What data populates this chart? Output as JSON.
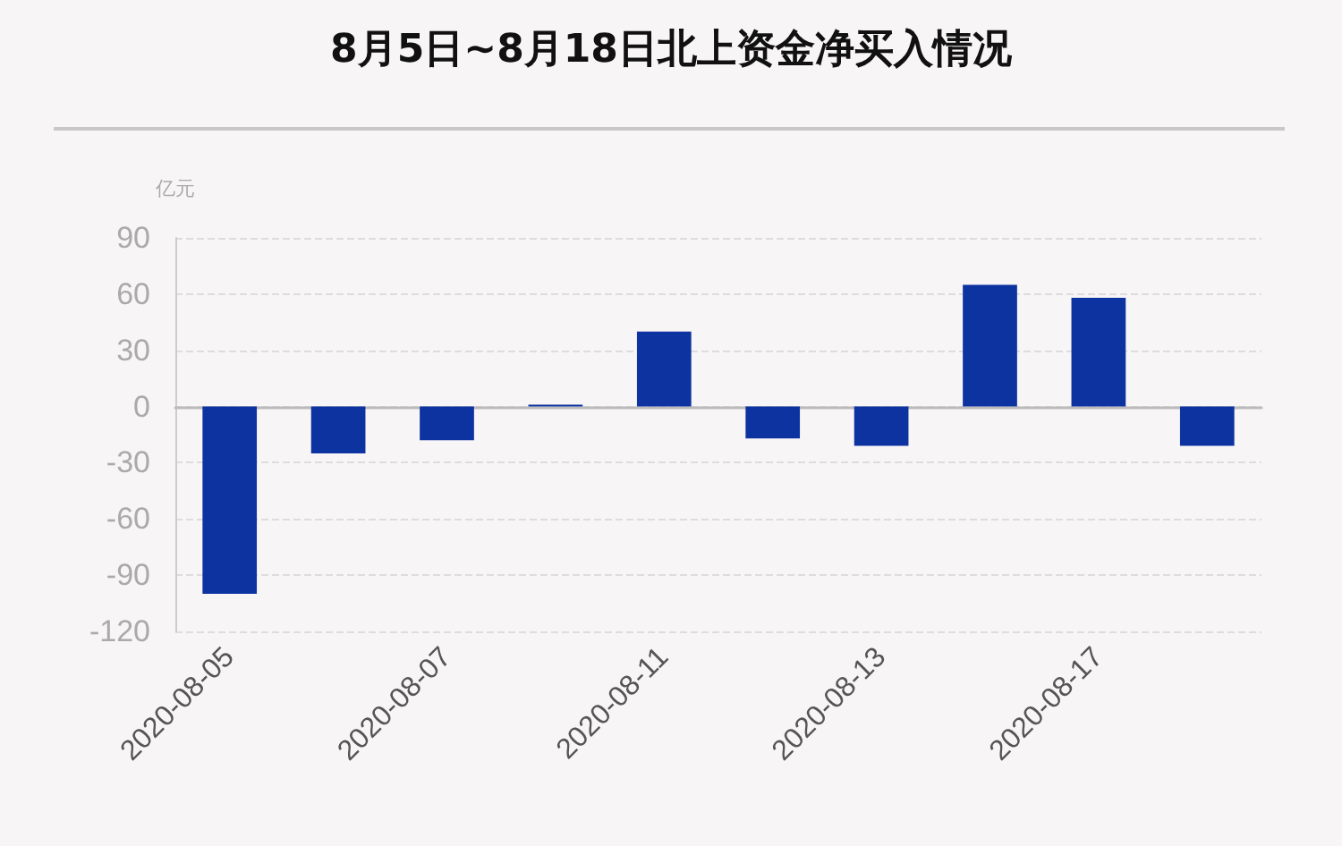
{
  "chart_data": {
    "type": "bar",
    "title": "8月5日~8月18日北上资金净买入情况",
    "ylabel": "亿元",
    "categories": [
      "2020-08-05",
      null,
      "2020-08-07",
      null,
      "2020-08-11",
      null,
      "2020-08-13",
      null,
      "2020-08-17",
      null
    ],
    "values": [
      -100,
      -25,
      -18,
      1,
      40,
      -17,
      -21,
      65,
      58,
      -21
    ],
    "color": "#0d33a0",
    "ylim": [
      -120,
      90
    ],
    "yticks": [
      -120,
      -90,
      -60,
      -30,
      0,
      30,
      60,
      90
    ],
    "grid": "y"
  }
}
